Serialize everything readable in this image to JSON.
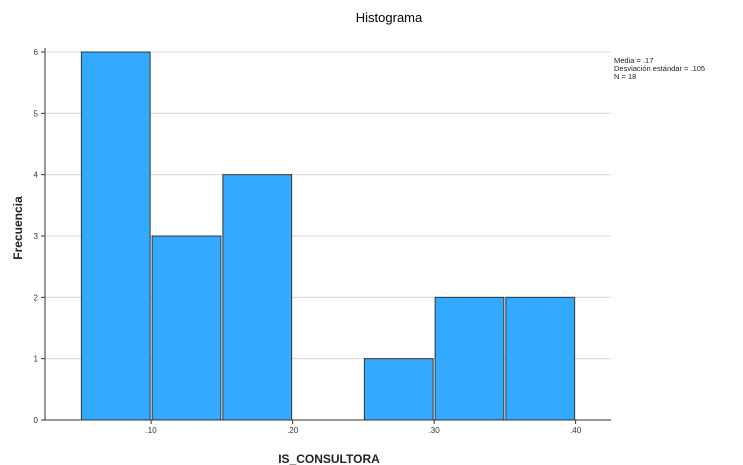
{
  "chart_data": {
    "type": "bar",
    "title": "Histograma",
    "xlabel": "IS_CONSULTORA",
    "ylabel": "Frecuencia",
    "bins": [
      {
        "from": 0.05,
        "to": 0.1,
        "value": 6
      },
      {
        "from": 0.1,
        "to": 0.15,
        "value": 3
      },
      {
        "from": 0.15,
        "to": 0.2,
        "value": 4
      },
      {
        "from": 0.2,
        "to": 0.25,
        "value": 0
      },
      {
        "from": 0.25,
        "to": 0.3,
        "value": 1
      },
      {
        "from": 0.3,
        "to": 0.35,
        "value": 2
      },
      {
        "from": 0.35,
        "to": 0.4,
        "value": 2
      }
    ],
    "xlim": [
      0.025,
      0.425
    ],
    "ylim": [
      0,
      6
    ],
    "x_ticks": [
      {
        "value": 0.1,
        "label": ".10"
      },
      {
        "value": 0.2,
        "label": ".20"
      },
      {
        "value": 0.3,
        "label": ".30"
      },
      {
        "value": 0.4,
        "label": ".40"
      }
    ],
    "y_ticks": [
      0,
      1,
      2,
      3,
      4,
      5,
      6
    ],
    "grid": true,
    "bar_color": "#33aaff",
    "stats": [
      "Media = .17",
      "Desviación estándar = .105",
      "N = 18"
    ],
    "stats_placement": "top-right"
  }
}
